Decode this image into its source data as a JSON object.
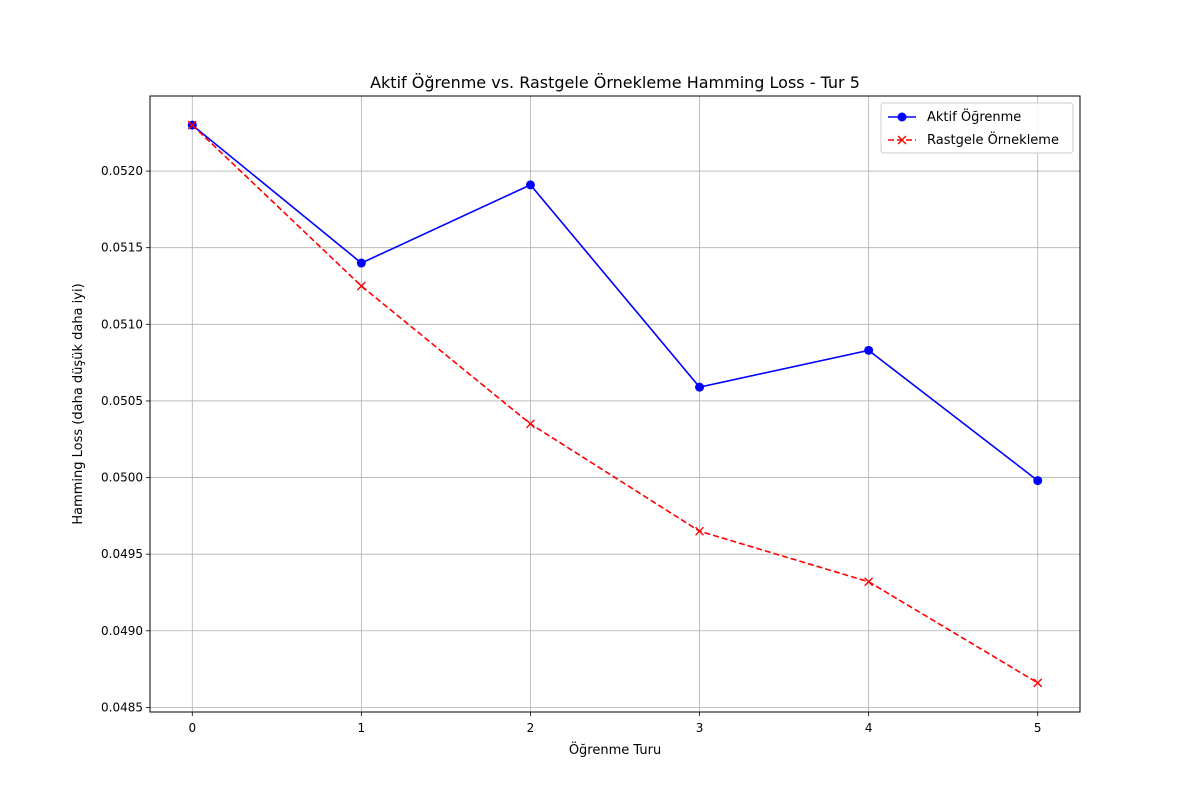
{
  "chart_data": {
    "type": "line",
    "title": "Aktif Öğrenme vs. Rastgele Örnekleme Hamming Loss - Tur 5",
    "xlabel": "Öğrenme Turu",
    "ylabel": "Hamming Loss (daha düşük daha iyi)",
    "x": [
      0,
      1,
      2,
      3,
      4,
      5
    ],
    "xlim": [
      -0.25,
      5.25
    ],
    "ylim": [
      0.04847,
      0.05249
    ],
    "xticks": [
      "0",
      "1",
      "2",
      "3",
      "4",
      "5"
    ],
    "yticks": [
      "0.0485",
      "0.0490",
      "0.0495",
      "0.0500",
      "0.0505",
      "0.0510",
      "0.0515",
      "0.0520"
    ],
    "grid": true,
    "legend_position": "top-right",
    "series": [
      {
        "name": "Aktif Öğrenme",
        "values": [
          0.0523,
          0.0514,
          0.05191,
          0.05059,
          0.05083,
          0.04998
        ],
        "color": "#0000ff",
        "linestyle": "solid",
        "marker": "circle"
      },
      {
        "name": "Rastgele Örnekleme",
        "values": [
          0.0523,
          0.05125,
          0.05035,
          0.04965,
          0.04932,
          0.04866
        ],
        "color": "#ff0000",
        "linestyle": "dashed",
        "marker": "x"
      }
    ]
  }
}
